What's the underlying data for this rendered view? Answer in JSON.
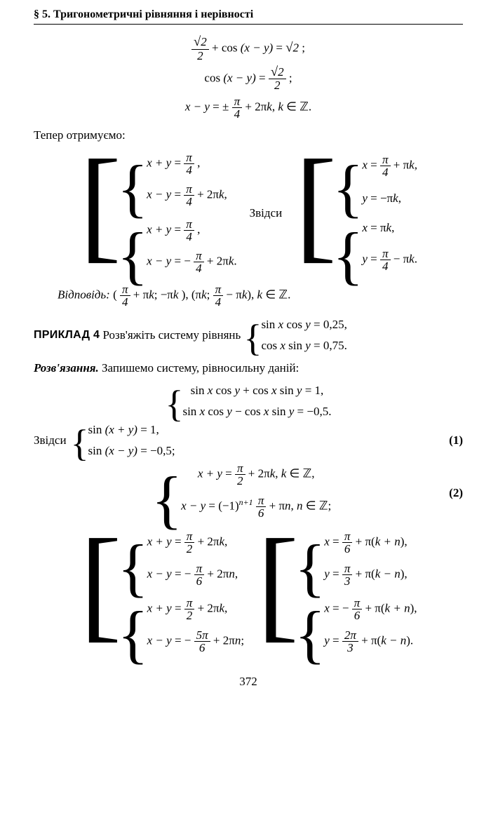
{
  "header": {
    "section": "§ 5.",
    "title": "Тригонометричні рівняння і нерівності"
  },
  "eq1": "√2⁄2 + cos (x − y) = √2 ;",
  "eq2": "cos (x − y) = √2⁄2 ;",
  "eq3": "x − y = ± π⁄4 + 2πk,  k ∈ ℤ.",
  "teper": "Тепер отримуємо:",
  "sysL": {
    "a1": "x + y = π⁄4 ,",
    "a2": "x − y = π⁄4 + 2πk,",
    "b1": "x + y = π⁄4 ,",
    "b2": "x − y = − π⁄4 + 2πk."
  },
  "zvidsy": "Звідси",
  "sysR": {
    "a1": "x = π⁄4 + πk,",
    "a2": "y = −πk,",
    "b1": "x = πk,",
    "b2": "y = π⁄4 − πk."
  },
  "answer_label": "Відповідь:",
  "answer_body": "( π⁄4 + πk;  −πk ),  ( πk;  π⁄4 − πk ),  k ∈ ℤ.",
  "ex_label": "ПРИКЛАД 4",
  "ex_text": "Розв'яжіть систему рівнянь",
  "ex_sys": {
    "a": "sin x cos y = 0,25,",
    "b": "cos x sin y = 0,75."
  },
  "rozv_label": "Розв'язання.",
  "rozv_text": "Запишемо систему, рівносильну даній:",
  "sys2": {
    "a": "sin x cos y + cos x sin y = 1,",
    "b": "sin x cos y − cos x sin y = −0,5."
  },
  "zv2": "Звідси",
  "sys3": {
    "a": "sin (x + y) = 1,",
    "b": "sin (x − y) = −0,5;"
  },
  "eqnum1": "(1)",
  "sys4": {
    "a": "x + y = π⁄2 + 2πk, k ∈ ℤ,",
    "b": "x − y = (−1)ⁿ⁺¹ π⁄6 + πn, n ∈ ℤ;"
  },
  "eqnum2": "(2)",
  "sysBL_A_1": "x + y = π⁄2 + 2πk,",
  "sysBL_A_2": "x − y = − π⁄6 + 2πn,",
  "sysBL_B_1": "x + y = π⁄2 + 2πk,",
  "sysBL_B_2": "x − y = − 5π⁄6 + 2πn;",
  "sysBR_A_1": "x = π⁄6 + π(k + n),",
  "sysBR_A_2": "y = π⁄3 + π(k − n),",
  "sysBR_B_1": "x = − π⁄6 + π(k + n),",
  "sysBR_B_2": "y = 2π⁄3 + π(k − n).",
  "pagenum": "372"
}
